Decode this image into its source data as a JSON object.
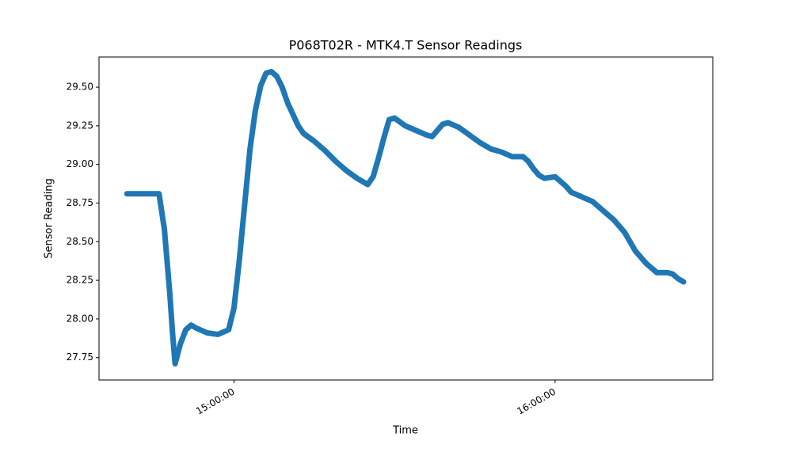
{
  "chart_data": {
    "type": "line",
    "title": "P068T02R - MTK4.T Sensor Readings",
    "x_label": "Time",
    "y_label": "Sensor Reading",
    "x": [
      "14:40:00",
      "14:42:00",
      "14:44:00",
      "14:46:00",
      "14:47:00",
      "14:48:00",
      "14:48:30",
      "14:49:00",
      "14:50:00",
      "14:51:00",
      "14:52:00",
      "14:53:00",
      "14:55:00",
      "14:57:00",
      "14:59:00",
      "15:00:00",
      "15:01:00",
      "15:02:00",
      "15:03:00",
      "15:04:00",
      "15:05:00",
      "15:06:00",
      "15:07:00",
      "15:08:00",
      "15:09:00",
      "15:10:00",
      "15:12:00",
      "15:13:00",
      "15:15:00",
      "15:17:00",
      "15:19:00",
      "15:21:00",
      "15:23:00",
      "15:25:00",
      "15:26:00",
      "15:27:00",
      "15:28:00",
      "15:29:00",
      "15:30:00",
      "15:32:00",
      "15:34:00",
      "15:36:00",
      "15:37:00",
      "15:38:00",
      "15:39:00",
      "15:40:00",
      "15:42:00",
      "15:44:00",
      "15:46:00",
      "15:48:00",
      "15:50:00",
      "15:52:00",
      "15:54:00",
      "15:55:00",
      "15:56:00",
      "15:57:00",
      "15:58:00",
      "16:00:00",
      "16:01:00",
      "16:02:00",
      "16:03:00",
      "16:05:00",
      "16:07:00",
      "16:09:00",
      "16:11:00",
      "16:13:00",
      "16:15:00",
      "16:17:00",
      "16:19:00",
      "16:21:00",
      "16:22:00",
      "16:23:00",
      "16:24:00"
    ],
    "series": [
      {
        "name": "MTK4.T",
        "color": "#1f77b4",
        "values": [
          28.81,
          28.81,
          28.81,
          28.81,
          28.58,
          28.17,
          27.92,
          27.71,
          27.84,
          27.93,
          27.96,
          27.94,
          27.91,
          27.9,
          27.93,
          28.07,
          28.38,
          28.74,
          29.1,
          29.35,
          29.51,
          29.59,
          29.6,
          29.57,
          29.5,
          29.4,
          29.25,
          29.2,
          29.15,
          29.09,
          29.02,
          28.96,
          28.91,
          28.87,
          28.92,
          29.04,
          29.17,
          29.29,
          29.3,
          29.25,
          29.22,
          29.19,
          29.18,
          29.22,
          29.26,
          29.27,
          29.24,
          29.19,
          29.14,
          29.1,
          29.08,
          29.05,
          29.05,
          29.02,
          28.97,
          28.93,
          28.91,
          28.92,
          28.89,
          28.86,
          28.82,
          28.79,
          28.76,
          28.7,
          28.64,
          28.56,
          28.44,
          28.36,
          28.3,
          28.3,
          28.29,
          28.26,
          28.24
        ]
      }
    ],
    "xlim": [
      "14:34:47",
      "16:29:28"
    ],
    "xticks": [
      "15:00:00",
      "16:00:00"
    ],
    "ylim": [
      27.605,
      29.695
    ],
    "yticks": [
      27.75,
      {
        "value": 28,
        "label": "28.00"
      },
      28.25,
      {
        "value": 28.5,
        "label": "28.50"
      },
      28.75,
      {
        "value": 29,
        "label": "29.00"
      },
      29.25,
      {
        "value": 29.5,
        "label": "29.50"
      }
    ],
    "grid": false
  }
}
